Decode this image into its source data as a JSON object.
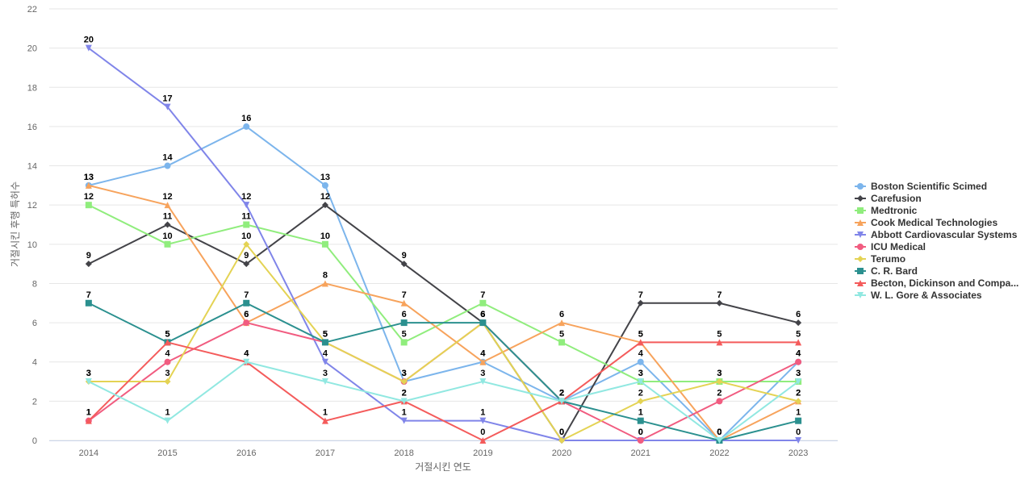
{
  "chart_data": {
    "type": "line",
    "title": "",
    "xlabel": "거절시킨 연도",
    "ylabel": "거절시킨 후행 특허수",
    "ylim": [
      0,
      22
    ],
    "yticks": [
      0,
      2,
      4,
      6,
      8,
      10,
      12,
      14,
      16,
      18,
      20,
      22
    ],
    "grid": true,
    "legend_position": "right",
    "categories": [
      "2014",
      "2015",
      "2016",
      "2017",
      "2018",
      "2019",
      "2020",
      "2021",
      "2022",
      "2023"
    ],
    "series": [
      {
        "name": "Boston Scientific Scimed",
        "color": "#7cb5ec",
        "marker": "circle",
        "values": [
          13,
          14,
          16,
          13,
          3,
          4,
          2,
          4,
          0,
          4
        ]
      },
      {
        "name": "Carefusion",
        "color": "#434348",
        "marker": "diamond",
        "values": [
          9,
          11,
          9,
          12,
          9,
          6,
          0,
          7,
          7,
          6
        ]
      },
      {
        "name": "Medtronic",
        "color": "#90ed7d",
        "marker": "square",
        "values": [
          12,
          10,
          11,
          10,
          5,
          7,
          5,
          3,
          3,
          3
        ]
      },
      {
        "name": "Cook Medical Technologies",
        "color": "#f7a35c",
        "marker": "triangle",
        "values": [
          13,
          12,
          6,
          8,
          7,
          4,
          6,
          5,
          0,
          2
        ]
      },
      {
        "name": "Abbott Cardiovascular Systems",
        "color": "#8085e9",
        "marker": "triangle-down",
        "values": [
          20,
          17,
          12,
          4,
          1,
          1,
          0,
          0,
          0,
          0
        ]
      },
      {
        "name": "ICU Medical",
        "color": "#f15c80",
        "marker": "circle",
        "values": [
          1,
          4,
          6,
          5,
          3,
          6,
          2,
          0,
          2,
          4
        ]
      },
      {
        "name": "Terumo",
        "color": "#e4d354",
        "marker": "diamond",
        "values": [
          3,
          3,
          10,
          5,
          3,
          6,
          0,
          2,
          3,
          2
        ]
      },
      {
        "name": "C. R. Bard",
        "color": "#2b908f",
        "marker": "square",
        "values": [
          7,
          5,
          7,
          5,
          6,
          6,
          2,
          1,
          0,
          1
        ]
      },
      {
        "name": "Becton, Dickinson and Compa...",
        "color": "#f45b5b",
        "marker": "triangle",
        "values": [
          1,
          5,
          4,
          1,
          2,
          0,
          2,
          5,
          5,
          5
        ]
      },
      {
        "name": "W. L. Gore & Associates",
        "color": "#91e8e1",
        "marker": "triangle-down",
        "values": [
          3,
          1,
          4,
          3,
          2,
          3,
          2,
          3,
          0,
          3
        ]
      }
    ]
  }
}
